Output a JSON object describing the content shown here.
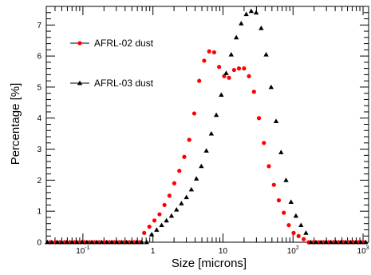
{
  "chart_data": {
    "type": "scatter",
    "title": "",
    "xlabel": "Size [microns]",
    "ylabel": "Percentage [%]",
    "xscale": "log",
    "xlim": [
      0.03,
      1200
    ],
    "ylim": [
      0,
      7.6
    ],
    "grid": false,
    "legend_position": "top-left",
    "x_major_ticks": [
      0.1,
      1,
      10,
      100,
      1000
    ],
    "x_tick_labels": [
      {
        "base": "10",
        "exp": "-1"
      },
      {
        "base": "1",
        "exp": ""
      },
      {
        "base": "10",
        "exp": ""
      },
      {
        "base": "10",
        "exp": "2"
      },
      {
        "base": "10",
        "exp": "3"
      }
    ],
    "y_ticks": [
      0,
      1,
      2,
      3,
      4,
      5,
      6,
      7
    ],
    "series": [
      {
        "name": "AFRL-02 dust",
        "marker": "circle",
        "color": "#ff0000",
        "x": [
          0.034,
          0.04,
          0.047,
          0.055,
          0.065,
          0.076,
          0.09,
          0.105,
          0.124,
          0.146,
          0.172,
          0.202,
          0.238,
          0.28,
          0.33,
          0.39,
          0.46,
          0.54,
          0.64,
          0.75,
          0.89,
          1.05,
          1.24,
          1.46,
          1.72,
          2.02,
          2.38,
          2.8,
          3.3,
          3.89,
          4.58,
          5.39,
          6.35,
          7.48,
          8.81,
          10.4,
          12.2,
          14.4,
          16.9,
          20.0,
          23.5,
          27.7,
          32.6,
          38.4,
          45.2,
          53.3,
          62.7,
          73.9,
          87.0,
          102,
          120,
          142,
          167,
          197,
          232,
          273,
          322,
          379,
          446,
          526,
          619,
          729,
          859,
          1012
        ],
        "y": [
          0,
          0,
          0,
          0,
          0,
          0,
          0,
          0,
          0,
          0,
          0,
          0,
          0,
          0,
          0,
          0,
          0,
          0,
          0,
          0.3,
          0.5,
          0.7,
          0.9,
          1.2,
          1.5,
          1.9,
          2.3,
          2.75,
          3.3,
          4.15,
          5.2,
          5.85,
          6.15,
          6.12,
          5.65,
          5.35,
          5.3,
          5.55,
          5.6,
          5.6,
          5.35,
          4.85,
          4.0,
          3.2,
          2.45,
          1.85,
          1.35,
          0.95,
          0.55,
          0.3,
          0.2,
          0.1,
          0,
          0,
          0,
          0,
          0,
          0,
          0,
          0,
          0,
          0,
          0,
          0
        ]
      },
      {
        "name": "AFRL-03 dust",
        "marker": "triangle",
        "color": "#000000",
        "x": [
          0.031,
          0.036,
          0.043,
          0.05,
          0.059,
          0.07,
          0.082,
          0.097,
          0.114,
          0.134,
          0.158,
          0.186,
          0.219,
          0.258,
          0.304,
          0.358,
          0.422,
          0.497,
          0.585,
          0.689,
          0.812,
          0.956,
          1.13,
          1.33,
          1.56,
          1.84,
          2.17,
          2.55,
          3.01,
          3.54,
          4.17,
          4.91,
          5.79,
          6.82,
          8.03,
          9.46,
          11.1,
          13.1,
          15.5,
          18.2,
          21.5,
          25.3,
          29.8,
          35.1,
          41.3,
          48.7,
          57.3,
          67.5,
          79.5,
          93.7,
          110,
          130,
          153,
          180,
          212,
          250,
          295,
          347,
          409,
          482,
          567,
          668,
          787,
          927,
          1092
        ],
        "y": [
          0,
          0,
          0,
          0,
          0,
          0,
          0,
          0,
          0,
          0,
          0,
          0,
          0,
          0,
          0,
          0,
          0,
          0,
          0,
          0,
          0,
          0.25,
          0.4,
          0.55,
          0.7,
          0.85,
          1.05,
          1.25,
          1.45,
          1.7,
          2.05,
          2.45,
          2.95,
          3.5,
          4.1,
          4.75,
          5.45,
          6.05,
          6.6,
          7.05,
          7.35,
          7.45,
          7.4,
          6.9,
          6.05,
          5.0,
          3.9,
          2.9,
          2.0,
          1.3,
          0.85,
          0.55,
          0.3,
          0,
          0,
          0,
          0,
          0,
          0,
          0,
          0,
          0,
          0,
          0,
          0
        ]
      }
    ]
  }
}
